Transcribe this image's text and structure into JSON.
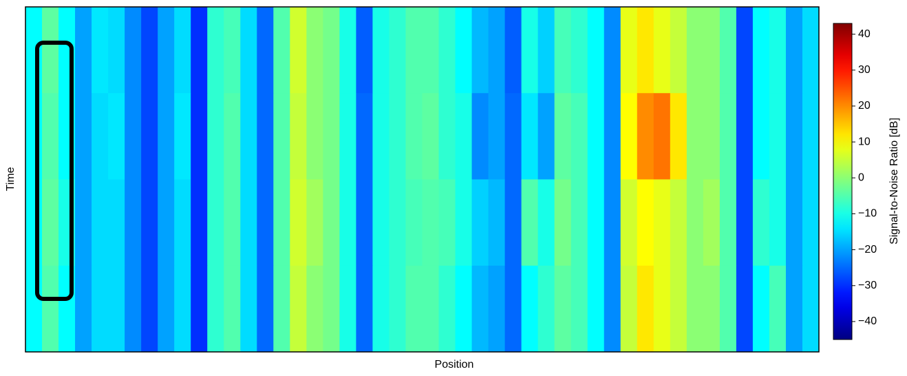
{
  "chart_data": {
    "type": "heatmap",
    "xlabel": "Position",
    "ylabel": "Time",
    "colorbar_label": "Signal-to-Noise Ratio [dB]",
    "colormap": "jet",
    "clim": [
      -45,
      43
    ],
    "cticks": [
      {
        "value": -40,
        "label": "−40"
      },
      {
        "value": -30,
        "label": "−30"
      },
      {
        "value": -20,
        "label": "−20"
      },
      {
        "value": -10,
        "label": "−10"
      },
      0,
      10,
      20,
      30,
      40
    ],
    "values": [
      [
        -12,
        -4,
        -12,
        -20,
        -14,
        -15,
        -22,
        -28,
        -20,
        -15,
        -30,
        -8,
        -6,
        -15,
        -25,
        -5,
        6,
        0,
        -2,
        -10,
        -26,
        -10,
        -8,
        -5,
        -5,
        -8,
        -12,
        -18,
        -20,
        -26,
        -10,
        -16,
        -6,
        -8,
        -12,
        -22,
        8,
        12,
        8,
        5,
        0,
        0,
        -5,
        -28,
        -12,
        -10,
        -20,
        -15
      ],
      [
        -12,
        -5,
        -12,
        -20,
        -15,
        -14,
        -22,
        -28,
        -20,
        -14,
        -30,
        -8,
        -5,
        -15,
        -25,
        -5,
        5,
        0,
        -2,
        -10,
        -25,
        -10,
        -8,
        -5,
        -4,
        -8,
        -10,
        -22,
        -20,
        -25,
        -14,
        -20,
        -4,
        -6,
        -12,
        -22,
        10,
        20,
        22,
        12,
        0,
        0,
        -5,
        -28,
        -12,
        -10,
        -20,
        -15
      ],
      [
        -12,
        -4,
        -10,
        -20,
        -15,
        -15,
        -22,
        -28,
        -20,
        -15,
        -30,
        -8,
        -5,
        -15,
        -25,
        -5,
        6,
        2,
        -2,
        -10,
        -25,
        -10,
        -8,
        -6,
        -5,
        -6,
        -10,
        -16,
        -18,
        -25,
        -5,
        -10,
        -2,
        -6,
        -12,
        -22,
        6,
        10,
        8,
        5,
        0,
        2,
        -5,
        -28,
        -8,
        -10,
        -20,
        -15
      ],
      [
        -12,
        -5,
        -12,
        -20,
        -15,
        -15,
        -22,
        -28,
        -20,
        -15,
        -30,
        -8,
        -5,
        -15,
        -25,
        -5,
        5,
        0,
        -2,
        -10,
        -25,
        -10,
        -8,
        -5,
        -5,
        -8,
        -12,
        -18,
        -20,
        -25,
        -12,
        -8,
        -4,
        -6,
        -12,
        -22,
        5,
        12,
        8,
        5,
        0,
        0,
        -5,
        -28,
        -12,
        -6,
        -20,
        -15
      ]
    ]
  }
}
